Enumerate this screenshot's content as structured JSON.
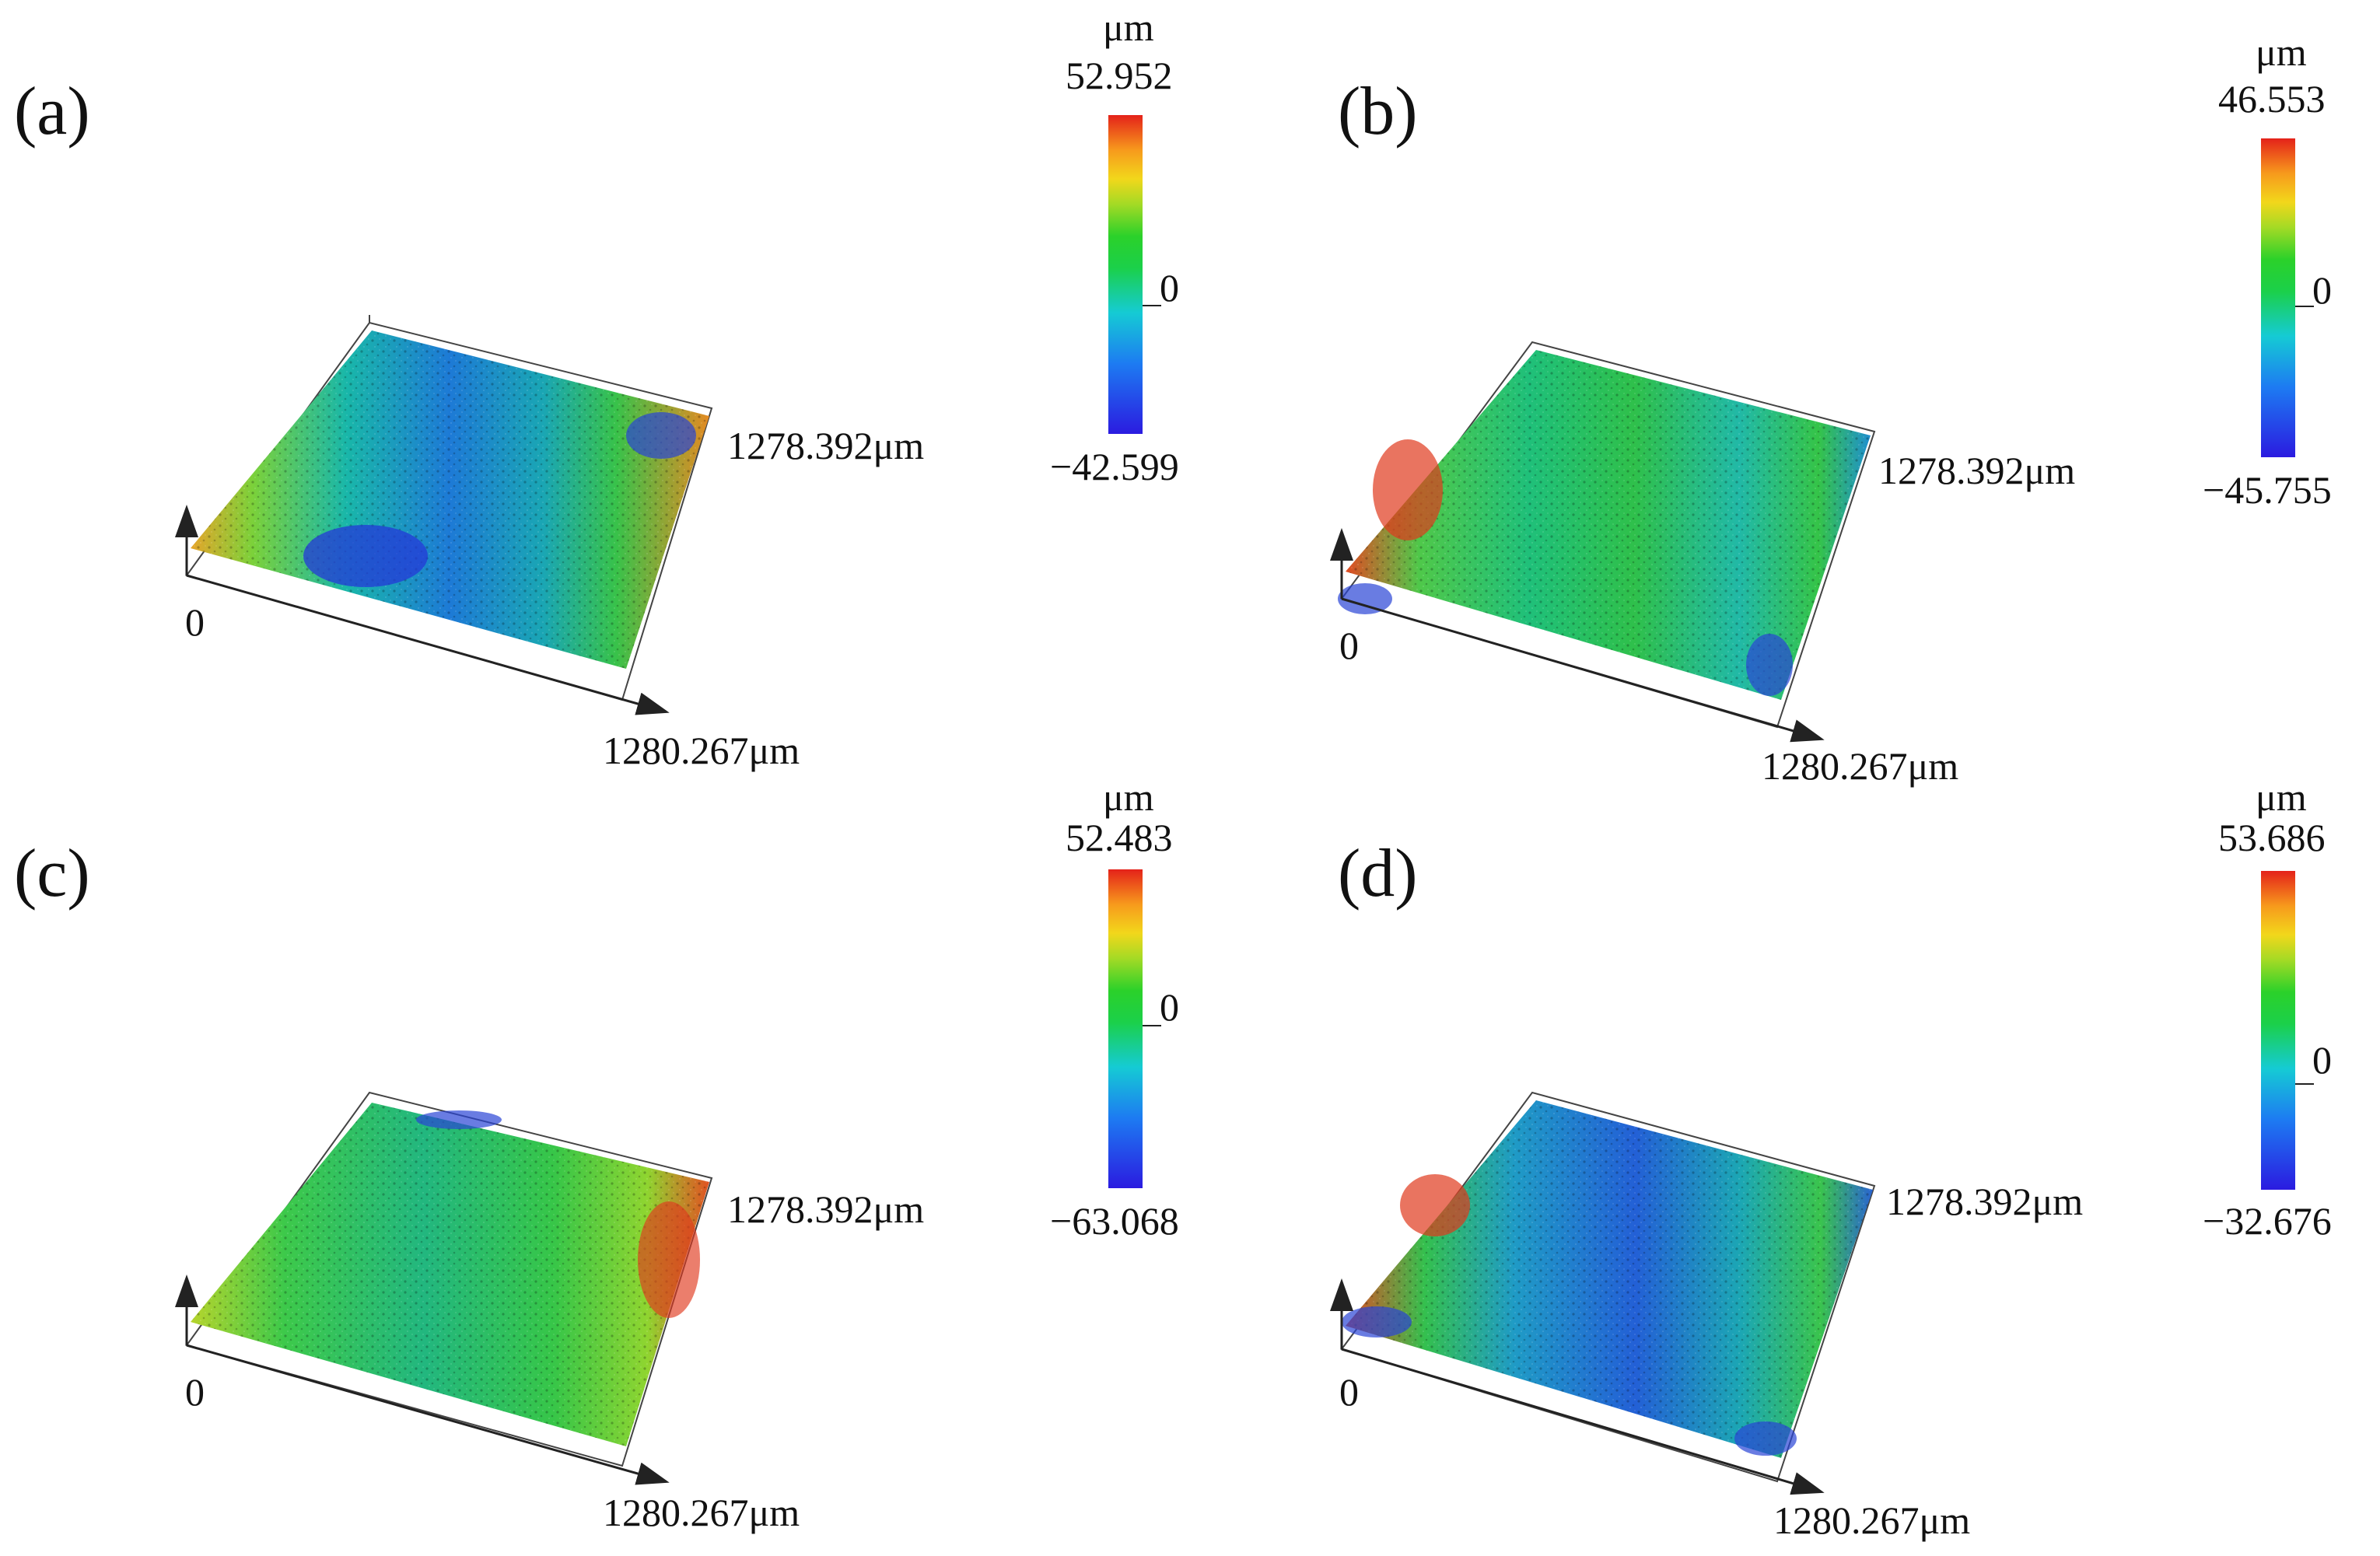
{
  "panels": [
    {
      "label": "(a)",
      "scale": {
        "unit": "μm",
        "max": "52.952",
        "zero": "0",
        "min": "−42.599"
      },
      "axes": {
        "origin": "0",
        "x_extent": "1280.267μm",
        "y_extent": "1278.392μm"
      }
    },
    {
      "label": "(b)",
      "scale": {
        "unit": "μm",
        "max": "46.553",
        "zero": "0",
        "min": "−45.755"
      },
      "axes": {
        "origin": "0",
        "x_extent": "1280.267μm",
        "y_extent": "1278.392μm"
      }
    },
    {
      "label": "(c)",
      "scale": {
        "unit": "μm",
        "max": "52.483",
        "zero": "0",
        "min": "−63.068"
      },
      "axes": {
        "origin": "0",
        "x_extent": "1280.267μm",
        "y_extent": "1278.392μm"
      }
    },
    {
      "label": "(d)",
      "scale": {
        "unit": "μm",
        "max": "53.686",
        "zero": "0",
        "min": "−32.676"
      },
      "axes": {
        "origin": "0",
        "x_extent": "1280.267μm",
        "y_extent": "1278.392μm"
      }
    }
  ],
  "colors": {
    "low": "#2b1be0",
    "mid": "#1bd04a",
    "high": "#e4221a"
  }
}
